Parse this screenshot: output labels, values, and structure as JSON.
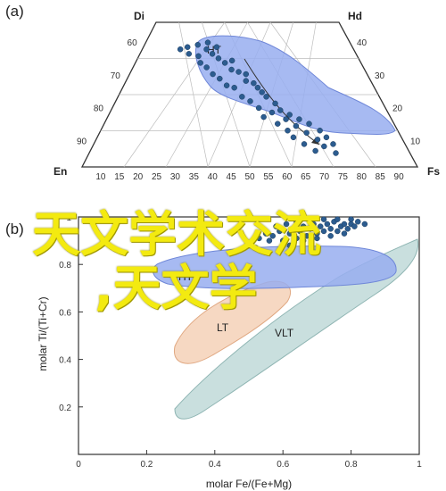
{
  "panel_labels": [
    "(a)",
    "(b)"
  ],
  "overlay_text": {
    "line1": "天文学术交流",
    "line2": ",天文学"
  },
  "colors": {
    "ht_fill": "#98aef0",
    "ht_stroke": "#6f87d8",
    "lt_fill": "#f6d6bf",
    "lt_stroke": "#e0a882",
    "vlt_fill": "#c3dcda",
    "vlt_stroke": "#8fb5b3",
    "point": "#2c5c8f",
    "overlay": "#f3ea10"
  },
  "chart_data": [
    {
      "type": "ternary",
      "panel": "(a)",
      "corners": {
        "top": "Di",
        "right": "Hd",
        "left": "En",
        "side": "Fs"
      },
      "left_edge_ticks": [
        "60",
        "70",
        "80",
        "90"
      ],
      "right_edge_ticks": [
        "40",
        "30",
        "20",
        "10"
      ],
      "bottom_ticks": [
        "10",
        "15",
        "20",
        "25",
        "30",
        "35",
        "40",
        "45",
        "50",
        "55",
        "60",
        "65",
        "70",
        "75",
        "80",
        "85",
        "90"
      ],
      "fields": [
        {
          "label": "HT"
        }
      ],
      "trend_arrow": true,
      "points_wo_fs": [
        [
          50,
          57
        ],
        [
          52,
          58
        ],
        [
          55,
          59
        ],
        [
          58,
          60
        ],
        [
          53,
          55
        ],
        [
          56,
          54
        ],
        [
          60,
          55
        ],
        [
          62,
          53
        ],
        [
          57,
          51
        ],
        [
          64,
          51
        ],
        [
          59,
          49
        ],
        [
          66,
          48
        ],
        [
          61,
          46
        ],
        [
          68,
          47
        ],
        [
          63,
          44
        ],
        [
          70,
          43
        ],
        [
          65,
          41
        ],
        [
          72,
          42
        ],
        [
          67,
          40
        ],
        [
          74,
          38
        ],
        [
          69,
          36
        ],
        [
          75,
          36
        ],
        [
          71,
          34
        ],
        [
          77,
          33
        ],
        [
          73,
          31
        ],
        [
          78,
          30
        ],
        [
          76,
          29
        ],
        [
          80,
          28
        ],
        [
          74,
          27
        ],
        [
          79,
          26
        ],
        [
          82,
          26
        ],
        [
          77,
          24
        ],
        [
          81,
          23
        ],
        [
          84,
          24
        ],
        [
          79,
          21
        ],
        [
          83,
          20
        ],
        [
          86,
          21
        ],
        [
          80,
          18
        ],
        [
          85,
          17
        ],
        [
          87,
          18
        ],
        [
          82,
          15
        ],
        [
          86,
          14
        ],
        [
          88,
          15
        ],
        [
          84,
          12
        ],
        [
          88,
          11
        ],
        [
          58,
          57
        ],
        [
          61,
          58
        ],
        [
          66,
          52
        ],
        [
          70,
          46
        ],
        [
          73,
          40
        ]
      ]
    },
    {
      "type": "scatter",
      "panel": "(b)",
      "xlabel": "molar Fe/(Fe+Mg)",
      "ylabel": "molar Ti/(Ti+Cr)",
      "xlim": [
        0,
        1
      ],
      "ylim": [
        0,
        1
      ],
      "xticks": [
        "0",
        "0.2",
        "0.4",
        "0.6",
        "0.8",
        "1"
      ],
      "yticks": [
        "0.2",
        "0.4",
        "0.6",
        "0.8",
        "1"
      ],
      "fields": [
        {
          "label": "HT"
        },
        {
          "label": "LT"
        },
        {
          "label": "VLT"
        }
      ],
      "points": [
        [
          0.5,
          0.89
        ],
        [
          0.53,
          0.91
        ],
        [
          0.55,
          0.93
        ],
        [
          0.57,
          0.92
        ],
        [
          0.59,
          0.94
        ],
        [
          0.6,
          0.9
        ],
        [
          0.62,
          0.93
        ],
        [
          0.63,
          0.95
        ],
        [
          0.64,
          0.91
        ],
        [
          0.65,
          0.94
        ],
        [
          0.66,
          0.96
        ],
        [
          0.67,
          0.92
        ],
        [
          0.68,
          0.95
        ],
        [
          0.69,
          0.97
        ],
        [
          0.7,
          0.93
        ],
        [
          0.71,
          0.96
        ],
        [
          0.72,
          0.94
        ],
        [
          0.73,
          0.97
        ],
        [
          0.74,
          0.95
        ],
        [
          0.75,
          0.98
        ],
        [
          0.76,
          0.94
        ],
        [
          0.77,
          0.96
        ],
        [
          0.78,
          0.97
        ],
        [
          0.79,
          0.95
        ],
        [
          0.8,
          0.97
        ],
        [
          0.81,
          0.96
        ],
        [
          0.82,
          0.98
        ],
        [
          0.66,
          0.9
        ],
        [
          0.7,
          0.91
        ],
        [
          0.74,
          0.92
        ],
        [
          0.78,
          0.93
        ],
        [
          0.72,
          0.99
        ],
        [
          0.76,
          0.99
        ],
        [
          0.8,
          0.99
        ],
        [
          0.84,
          0.97
        ],
        [
          0.58,
          0.96
        ],
        [
          0.61,
          0.97
        ],
        [
          0.64,
          0.98
        ],
        [
          0.68,
          0.99
        ],
        [
          0.56,
          0.9
        ],
        [
          0.52,
          0.87
        ],
        [
          0.62,
          0.88
        ]
      ]
    }
  ]
}
